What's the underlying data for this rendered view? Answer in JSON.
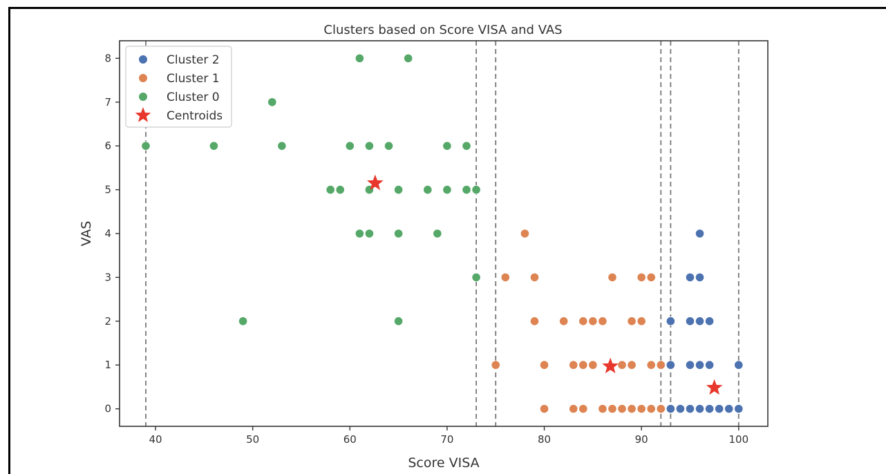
{
  "chart_data": {
    "type": "scatter",
    "title": "Clusters based on Score VISA and VAS",
    "xlabel": "Score VISA",
    "ylabel": "VAS",
    "xlim": [
      36.3,
      103.0
    ],
    "ylim": [
      -0.4,
      8.4
    ],
    "xticks": [
      40,
      50,
      60,
      70,
      80,
      90,
      100
    ],
    "yticks": [
      0,
      1,
      2,
      3,
      4,
      5,
      6,
      7,
      8
    ],
    "grid": false,
    "legend_position": "top-left",
    "vlines": [
      39,
      73,
      75,
      92,
      93,
      100
    ],
    "series": [
      {
        "name": "Cluster 2",
        "color": "#4c72b0",
        "marker": "circle",
        "points": [
          [
            96,
            4
          ],
          [
            95,
            3
          ],
          [
            96,
            3
          ],
          [
            93,
            2
          ],
          [
            95,
            2
          ],
          [
            96,
            2
          ],
          [
            97,
            2
          ],
          [
            93,
            1
          ],
          [
            95,
            1
          ],
          [
            96,
            1
          ],
          [
            97,
            1
          ],
          [
            100,
            1
          ],
          [
            93,
            0
          ],
          [
            94,
            0
          ],
          [
            95,
            0
          ],
          [
            96,
            0
          ],
          [
            97,
            0
          ],
          [
            98,
            0
          ],
          [
            99,
            0
          ],
          [
            100,
            0
          ]
        ]
      },
      {
        "name": "Cluster 1",
        "color": "#dd8452",
        "marker": "circle",
        "points": [
          [
            78,
            4
          ],
          [
            76,
            3
          ],
          [
            79,
            3
          ],
          [
            87,
            3
          ],
          [
            90,
            3
          ],
          [
            91,
            3
          ],
          [
            79,
            2
          ],
          [
            82,
            2
          ],
          [
            84,
            2
          ],
          [
            85,
            2
          ],
          [
            86,
            2
          ],
          [
            89,
            2
          ],
          [
            90,
            2
          ],
          [
            75,
            1
          ],
          [
            80,
            1
          ],
          [
            83,
            1
          ],
          [
            84,
            1
          ],
          [
            85,
            1
          ],
          [
            88,
            1
          ],
          [
            89,
            1
          ],
          [
            91,
            1
          ],
          [
            92,
            1
          ],
          [
            80,
            0
          ],
          [
            83,
            0
          ],
          [
            84,
            0
          ],
          [
            86,
            0
          ],
          [
            87,
            0
          ],
          [
            88,
            0
          ],
          [
            89,
            0
          ],
          [
            90,
            0
          ],
          [
            91,
            0
          ],
          [
            92,
            0
          ]
        ]
      },
      {
        "name": "Cluster 0",
        "color": "#55a868",
        "marker": "circle",
        "points": [
          [
            61,
            8
          ],
          [
            66,
            8
          ],
          [
            52,
            7
          ],
          [
            39,
            6
          ],
          [
            46,
            6
          ],
          [
            53,
            6
          ],
          [
            60,
            6
          ],
          [
            62,
            6
          ],
          [
            64,
            6
          ],
          [
            70,
            6
          ],
          [
            72,
            6
          ],
          [
            58,
            5
          ],
          [
            59,
            5
          ],
          [
            62,
            5
          ],
          [
            65,
            5
          ],
          [
            68,
            5
          ],
          [
            70,
            5
          ],
          [
            72,
            5
          ],
          [
            73,
            5
          ],
          [
            61,
            4
          ],
          [
            62,
            4
          ],
          [
            65,
            4
          ],
          [
            69,
            4
          ],
          [
            73,
            3
          ],
          [
            49,
            2
          ],
          [
            65,
            2
          ]
        ]
      },
      {
        "name": "Centroids",
        "color": "#e8372c",
        "marker": "star",
        "points": [
          [
            62.6,
            5.15
          ],
          [
            86.8,
            0.97
          ],
          [
            97.5,
            0.48
          ]
        ]
      }
    ]
  }
}
